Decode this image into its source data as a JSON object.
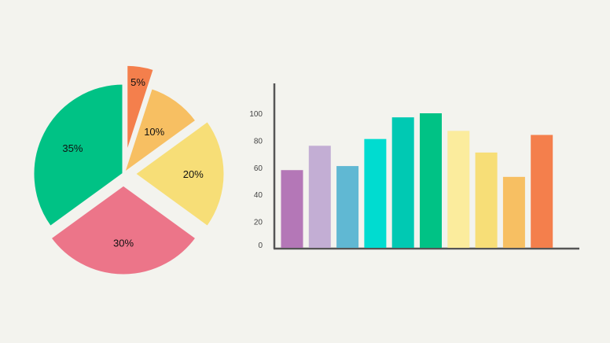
{
  "chart_data": [
    {
      "type": "pie",
      "slices": [
        {
          "label": "5%",
          "value": 5,
          "color": "#f47f4c"
        },
        {
          "label": "10%",
          "value": 10,
          "color": "#f7bf62"
        },
        {
          "label": "20%",
          "value": 20,
          "color": "#f7de77"
        },
        {
          "label": "30%",
          "value": 30,
          "color": "#ec7589"
        },
        {
          "label": "35%",
          "value": 35,
          "color": "#00c285"
        }
      ],
      "exploded": [
        "5%",
        "20%",
        "30%"
      ]
    },
    {
      "type": "bar",
      "ylim": [
        0,
        110
      ],
      "yticks": [
        {
          "value": 0,
          "label": "0"
        },
        {
          "value": 20,
          "label": "20"
        },
        {
          "value": 40,
          "label": "40"
        },
        {
          "value": 60,
          "label": "60"
        },
        {
          "value": 80,
          "label": "80"
        },
        {
          "value": 100,
          "label": "100"
        }
      ],
      "values": [
        58,
        76,
        61,
        81,
        97,
        100,
        87,
        71,
        53,
        84
      ],
      "colors": [
        "#b477b7",
        "#c3aed4",
        "#60b8d3",
        "#00dcd0",
        "#00c9b3",
        "#00c285",
        "#fbec9d",
        "#f7de77",
        "#f7bf62",
        "#f47f4c"
      ],
      "axis_color": "#555555"
    }
  ]
}
